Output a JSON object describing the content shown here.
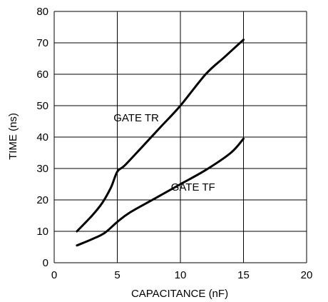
{
  "chart_data": {
    "type": "line",
    "title": "",
    "xlabel": "CAPACITANCE (nF)",
    "ylabel": "TIME (ns)",
    "xlim": [
      0,
      20
    ],
    "ylim": [
      0,
      80
    ],
    "x_ticks": [
      "0",
      "5",
      "10",
      "15",
      "20"
    ],
    "y_ticks": [
      "0",
      "10",
      "20",
      "30",
      "40",
      "50",
      "60",
      "70",
      "80"
    ],
    "grid": true,
    "series": [
      {
        "name": "GATE TR",
        "x": [
          1.8,
          3.0,
          3.8,
          4.5,
          5.0,
          5.6,
          7.0,
          8.5,
          10.0,
          12.0,
          13.5,
          15.0
        ],
        "y": [
          10,
          15,
          19,
          24,
          29,
          31,
          37,
          43.5,
          50,
          60,
          65.5,
          71
        ]
      },
      {
        "name": "GATE TF",
        "x": [
          1.8,
          3.0,
          4.0,
          5.0,
          6.0,
          8.0,
          10.0,
          12.0,
          14.0,
          15.0
        ],
        "y": [
          5.5,
          7.5,
          9.5,
          13,
          16,
          20.5,
          25,
          29.5,
          35,
          39.5
        ]
      }
    ],
    "annotations": [
      {
        "text": "GATE TR",
        "x": 6.5,
        "y": 45
      },
      {
        "text": "GATE TF",
        "x": 11.0,
        "y": 23
      }
    ]
  }
}
